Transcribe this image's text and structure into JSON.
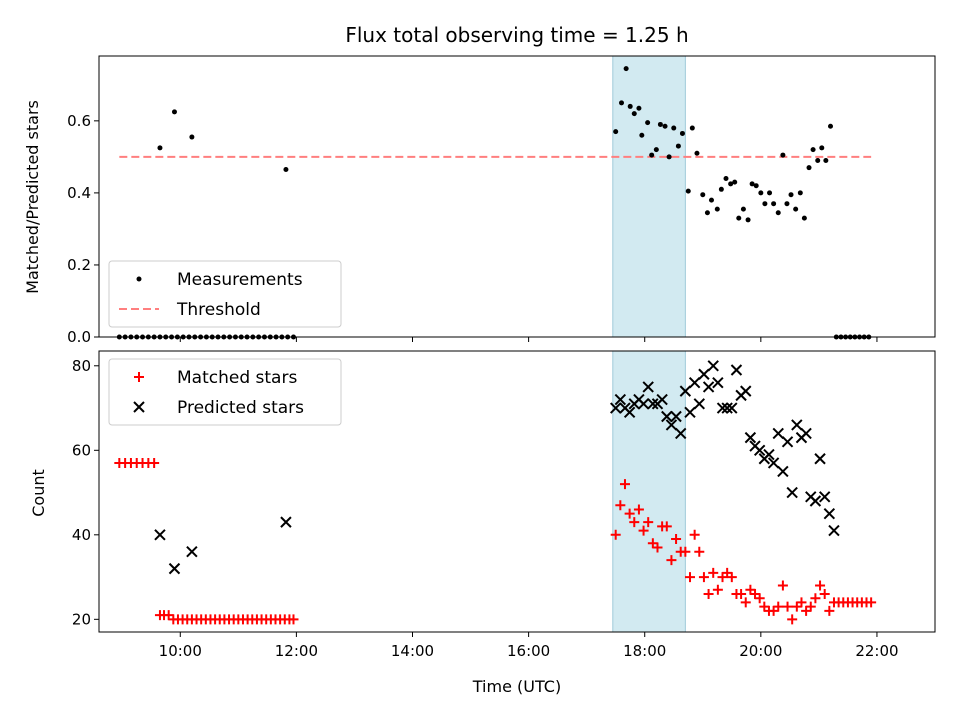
{
  "chart_data": {
    "title": "Flux total observing time = 1.25 h",
    "xlabel": "Time (UTC)",
    "xlim": [
      8.6,
      23.0
    ],
    "xticks": [
      10,
      12,
      14,
      16,
      18,
      20,
      22
    ],
    "xtick_labels": [
      "10:00",
      "12:00",
      "14:00",
      "16:00",
      "18:00",
      "20:00",
      "22:00"
    ],
    "highlight_span": [
      17.45,
      18.7
    ],
    "highlight_color": "#add8e6",
    "panels": [
      {
        "type": "scatter",
        "ylabel": "Matched/Predicted stars",
        "ylim": [
          0,
          0.78
        ],
        "yticks": [
          0.0,
          0.2,
          0.4,
          0.6
        ],
        "ytick_labels": [
          "0.0",
          "0.2",
          "0.4",
          "0.6"
        ],
        "legend_position": "bottom-left",
        "threshold": {
          "name": "Threshold",
          "y": 0.5,
          "x_range": [
            8.95,
            21.9
          ],
          "color": "#ff7f7f"
        },
        "series": [
          {
            "name": "Measurements",
            "marker": "dot",
            "color": "#000000",
            "points": [
              [
                8.95,
                0
              ],
              [
                9.05,
                0
              ],
              [
                9.15,
                0
              ],
              [
                9.25,
                0
              ],
              [
                9.35,
                0
              ],
              [
                9.45,
                0
              ],
              [
                9.55,
                0
              ],
              [
                9.65,
                0
              ],
              [
                9.75,
                0
              ],
              [
                9.85,
                0
              ],
              [
                9.95,
                0
              ],
              [
                10.05,
                0
              ],
              [
                10.15,
                0
              ],
              [
                10.25,
                0
              ],
              [
                10.35,
                0
              ],
              [
                10.45,
                0
              ],
              [
                10.55,
                0
              ],
              [
                10.65,
                0
              ],
              [
                10.75,
                0
              ],
              [
                10.85,
                0
              ],
              [
                10.95,
                0
              ],
              [
                11.05,
                0
              ],
              [
                11.15,
                0
              ],
              [
                11.25,
                0
              ],
              [
                11.35,
                0
              ],
              [
                11.45,
                0
              ],
              [
                11.55,
                0
              ],
              [
                11.65,
                0
              ],
              [
                11.75,
                0
              ],
              [
                11.85,
                0
              ],
              [
                11.95,
                0
              ],
              [
                9.65,
                0.525
              ],
              [
                9.9,
                0.625
              ],
              [
                10.2,
                0.555
              ],
              [
                11.82,
                0.465
              ],
              [
                17.5,
                0.57
              ],
              [
                17.6,
                0.65
              ],
              [
                17.68,
                0.745
              ],
              [
                17.75,
                0.64
              ],
              [
                17.82,
                0.62
              ],
              [
                17.9,
                0.635
              ],
              [
                17.95,
                0.56
              ],
              [
                18.05,
                0.595
              ],
              [
                18.12,
                0.505
              ],
              [
                18.2,
                0.52
              ],
              [
                18.27,
                0.59
              ],
              [
                18.35,
                0.585
              ],
              [
                18.42,
                0.5
              ],
              [
                18.5,
                0.58
              ],
              [
                18.58,
                0.53
              ],
              [
                18.65,
                0.565
              ],
              [
                18.75,
                0.405
              ],
              [
                18.82,
                0.58
              ],
              [
                18.9,
                0.51
              ],
              [
                19.0,
                0.395
              ],
              [
                19.08,
                0.345
              ],
              [
                19.15,
                0.38
              ],
              [
                19.25,
                0.355
              ],
              [
                19.32,
                0.41
              ],
              [
                19.4,
                0.44
              ],
              [
                19.48,
                0.425
              ],
              [
                19.55,
                0.43
              ],
              [
                19.62,
                0.33
              ],
              [
                19.7,
                0.355
              ],
              [
                19.78,
                0.325
              ],
              [
                19.85,
                0.425
              ],
              [
                19.92,
                0.42
              ],
              [
                20.0,
                0.4
              ],
              [
                20.07,
                0.37
              ],
              [
                20.15,
                0.4
              ],
              [
                20.22,
                0.37
              ],
              [
                20.3,
                0.345
              ],
              [
                20.38,
                0.505
              ],
              [
                20.45,
                0.37
              ],
              [
                20.52,
                0.395
              ],
              [
                20.6,
                0.355
              ],
              [
                20.68,
                0.4
              ],
              [
                20.75,
                0.33
              ],
              [
                20.83,
                0.47
              ],
              [
                20.9,
                0.52
              ],
              [
                20.98,
                0.49
              ],
              [
                21.05,
                0.525
              ],
              [
                21.12,
                0.49
              ],
              [
                21.2,
                0.585
              ],
              [
                21.3,
                0
              ],
              [
                21.38,
                0
              ],
              [
                21.46,
                0
              ],
              [
                21.54,
                0
              ],
              [
                21.62,
                0
              ],
              [
                21.7,
                0
              ],
              [
                21.78,
                0
              ],
              [
                21.86,
                0
              ]
            ]
          }
        ]
      },
      {
        "type": "scatter",
        "ylabel": "Count",
        "ylim": [
          17,
          83.5
        ],
        "yticks": [
          20,
          40,
          60,
          80
        ],
        "ytick_labels": [
          "20",
          "40",
          "60",
          "80"
        ],
        "legend_position": "top-left",
        "series": [
          {
            "name": "Matched stars",
            "marker": "plus",
            "color": "#ff0000",
            "points": [
              [
                8.95,
                57
              ],
              [
                9.05,
                57
              ],
              [
                9.15,
                57
              ],
              [
                9.25,
                57
              ],
              [
                9.35,
                57
              ],
              [
                9.45,
                57
              ],
              [
                9.55,
                57
              ],
              [
                9.65,
                21
              ],
              [
                9.72,
                21
              ],
              [
                9.8,
                21
              ],
              [
                9.88,
                20
              ],
              [
                9.96,
                20
              ],
              [
                10.04,
                20
              ],
              [
                10.12,
                20
              ],
              [
                10.2,
                20
              ],
              [
                10.28,
                20
              ],
              [
                10.36,
                20
              ],
              [
                10.44,
                20
              ],
              [
                10.52,
                20
              ],
              [
                10.6,
                20
              ],
              [
                10.68,
                20
              ],
              [
                10.76,
                20
              ],
              [
                10.84,
                20
              ],
              [
                10.92,
                20
              ],
              [
                11.0,
                20
              ],
              [
                11.08,
                20
              ],
              [
                11.16,
                20
              ],
              [
                11.24,
                20
              ],
              [
                11.32,
                20
              ],
              [
                11.4,
                20
              ],
              [
                11.48,
                20
              ],
              [
                11.56,
                20
              ],
              [
                11.64,
                20
              ],
              [
                11.72,
                20
              ],
              [
                11.8,
                20
              ],
              [
                11.88,
                20
              ],
              [
                11.95,
                20
              ],
              [
                17.5,
                40
              ],
              [
                17.58,
                47
              ],
              [
                17.66,
                52
              ],
              [
                17.74,
                45
              ],
              [
                17.82,
                43
              ],
              [
                17.9,
                46
              ],
              [
                17.98,
                41
              ],
              [
                18.06,
                43
              ],
              [
                18.14,
                38
              ],
              [
                18.22,
                37
              ],
              [
                18.3,
                42
              ],
              [
                18.38,
                42
              ],
              [
                18.46,
                34
              ],
              [
                18.54,
                39
              ],
              [
                18.62,
                36
              ],
              [
                18.7,
                36
              ],
              [
                18.78,
                30
              ],
              [
                18.86,
                40
              ],
              [
                18.94,
                36
              ],
              [
                19.02,
                30
              ],
              [
                19.1,
                26
              ],
              [
                19.18,
                31
              ],
              [
                19.26,
                27
              ],
              [
                19.34,
                30
              ],
              [
                19.42,
                31
              ],
              [
                19.5,
                30
              ],
              [
                19.58,
                26
              ],
              [
                19.66,
                26
              ],
              [
                19.74,
                24
              ],
              [
                19.82,
                27
              ],
              [
                19.9,
                26
              ],
              [
                19.98,
                25
              ],
              [
                20.06,
                23
              ],
              [
                20.14,
                22
              ],
              [
                20.22,
                22
              ],
              [
                20.3,
                23
              ],
              [
                20.38,
                28
              ],
              [
                20.46,
                23
              ],
              [
                20.54,
                20
              ],
              [
                20.62,
                23
              ],
              [
                20.7,
                24
              ],
              [
                20.78,
                22
              ],
              [
                20.86,
                23
              ],
              [
                20.94,
                25
              ],
              [
                21.02,
                28
              ],
              [
                21.1,
                26
              ],
              [
                21.18,
                22
              ],
              [
                21.26,
                24
              ],
              [
                21.34,
                24
              ],
              [
                21.42,
                24
              ],
              [
                21.5,
                24
              ],
              [
                21.58,
                24
              ],
              [
                21.66,
                24
              ],
              [
                21.74,
                24
              ],
              [
                21.82,
                24
              ],
              [
                21.9,
                24
              ]
            ]
          },
          {
            "name": "Predicted stars",
            "marker": "x",
            "color": "#000000",
            "points": [
              [
                9.65,
                40
              ],
              [
                9.9,
                32
              ],
              [
                10.2,
                36
              ],
              [
                11.82,
                43
              ],
              [
                17.5,
                70
              ],
              [
                17.58,
                72
              ],
              [
                17.66,
                70
              ],
              [
                17.74,
                69
              ],
              [
                17.82,
                71
              ],
              [
                17.9,
                72
              ],
              [
                17.98,
                71
              ],
              [
                18.06,
                75
              ],
              [
                18.14,
                71
              ],
              [
                18.22,
                71
              ],
              [
                18.3,
                72
              ],
              [
                18.38,
                68
              ],
              [
                18.46,
                66
              ],
              [
                18.54,
                68
              ],
              [
                18.62,
                64
              ],
              [
                18.7,
                74
              ],
              [
                18.78,
                69
              ],
              [
                18.86,
                76
              ],
              [
                18.94,
                71
              ],
              [
                19.02,
                78
              ],
              [
                19.1,
                75
              ],
              [
                19.18,
                80
              ],
              [
                19.26,
                76
              ],
              [
                19.34,
                70
              ],
              [
                19.42,
                70
              ],
              [
                19.5,
                70
              ],
              [
                19.58,
                79
              ],
              [
                19.66,
                73
              ],
              [
                19.74,
                74
              ],
              [
                19.82,
                63
              ],
              [
                19.9,
                61
              ],
              [
                19.98,
                60
              ],
              [
                20.06,
                58
              ],
              [
                20.14,
                59
              ],
              [
                20.22,
                57
              ],
              [
                20.3,
                64
              ],
              [
                20.38,
                55
              ],
              [
                20.46,
                62
              ],
              [
                20.54,
                50
              ],
              [
                20.62,
                66
              ],
              [
                20.7,
                63
              ],
              [
                20.78,
                64
              ],
              [
                20.86,
                49
              ],
              [
                20.94,
                48
              ],
              [
                21.02,
                58
              ],
              [
                21.1,
                49
              ],
              [
                21.18,
                45
              ],
              [
                21.26,
                41
              ]
            ]
          }
        ]
      }
    ]
  }
}
